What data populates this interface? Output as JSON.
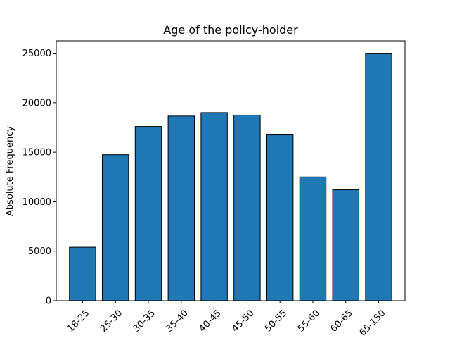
{
  "chart_data": {
    "type": "bar",
    "title": "Age of the policy-holder",
    "xlabel": "",
    "ylabel": "Absolute Frequency",
    "categories": [
      "18-25",
      "25-30",
      "30-35",
      "35-40",
      "40-45",
      "45-50",
      "50-55",
      "55-60",
      "60-65",
      "65-150"
    ],
    "values": [
      5400,
      14750,
      17600,
      18650,
      19000,
      18750,
      16750,
      12500,
      11200,
      25000
    ],
    "ylim": [
      0,
      26250
    ],
    "yticks": [
      0,
      5000,
      10000,
      15000,
      20000,
      25000
    ],
    "ytick_labels": [
      "0",
      "5000",
      "10000",
      "15000",
      "20000",
      "25000"
    ],
    "grid": false,
    "bar_color": "#1f77b4",
    "edge_color": "#000000",
    "xtick_rotation_deg": 45
  }
}
